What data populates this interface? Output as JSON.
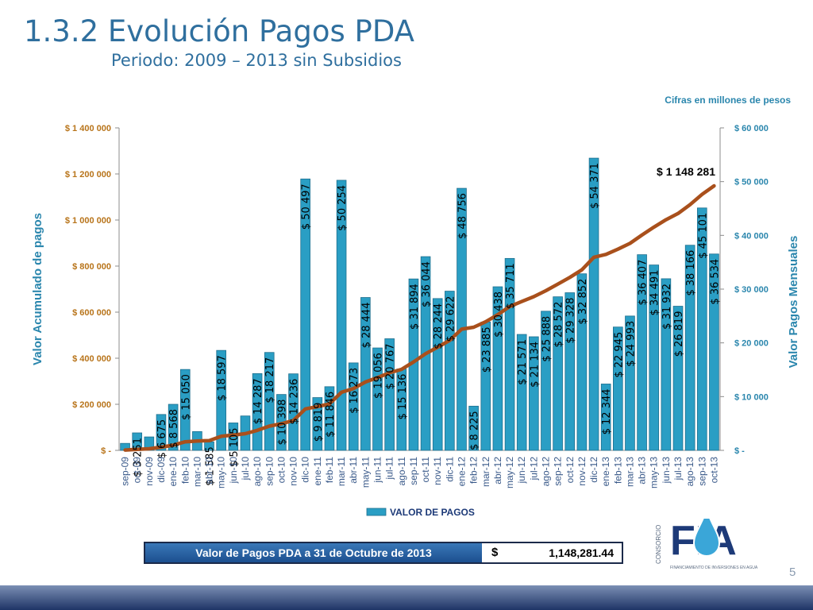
{
  "slide": {
    "title": "1.3.2 Evolución Pagos PDA",
    "subtitle": "Periodo: 2009 – 2013 sin Subsidios",
    "page_number": "5"
  },
  "summary": {
    "label": "Valor de Pagos PDA a 31 de Octubre de 2013",
    "currency": "$",
    "value": "1,148,281.44"
  },
  "logo": {
    "text": "FIA",
    "side_text": "CONSORCIO",
    "tagline": "FINANCIAMIENTO DE INVERSIONES EN AGUA"
  },
  "chart_data": {
    "type": "bar",
    "units_note": "Cifras en millones de pesos",
    "ylabel_left": "Valor Acumulado de pagos",
    "ylabel_right": "Valor Pagos Mensuales",
    "legend": "VALOR DE PAGOS",
    "legend_position": "bottom",
    "left_axis": {
      "range": [
        0,
        1400000
      ],
      "ticks": [
        "$ -",
        "$ 200 000",
        "$ 400 000",
        "$ 600 000",
        "$ 800 000",
        "$ 1 000 000",
        "$ 1 200 000",
        "$ 1 400 000"
      ]
    },
    "right_axis": {
      "range": [
        0,
        60000
      ],
      "ticks": [
        "$ -",
        "$ 10 000",
        "$ 20 000",
        "$ 30 000",
        "$ 40 000",
        "$ 50 000",
        "$ 60 000"
      ]
    },
    "categories": [
      "sep-09",
      "oct-09",
      "nov-09",
      "dic-09",
      "ene-10",
      "feb-10",
      "mar-10",
      "abr-10",
      "may-10",
      "jun-10",
      "jul-10",
      "ago-10",
      "sep-10",
      "oct-10",
      "nov-10",
      "dic-10",
      "ene-11",
      "feb-11",
      "mar-11",
      "abr-11",
      "may-11",
      "jun-11",
      "jul-11",
      "ago-11",
      "sep-11",
      "oct-11",
      "nov-11",
      "dic-11",
      "ene-12",
      "feb-12",
      "mar-12",
      "abr-12",
      "may-12",
      "jun-12",
      "jul-12",
      "ago-12",
      "sep-12",
      "oct-12",
      "nov-12",
      "dic-12",
      "ene-13",
      "feb-13",
      "mar-13",
      "abr-13",
      "may-13",
      "jun-13",
      "jul-13",
      "ago-13",
      "sep-13",
      "oct-13"
    ],
    "series": [
      {
        "name": "VALOR DE PAGOS",
        "type": "bar",
        "axis": "right",
        "color": "#2a9ec4",
        "values": [
          1300,
          3251,
          2500,
          6675,
          8568,
          15050,
          3500,
          1585,
          18597,
          5105,
          6400,
          14287,
          18217,
          10398,
          14236,
          50497,
          9819,
          11846,
          50254,
          16273,
          28444,
          19056,
          20767,
          15136,
          31894,
          36044,
          28244,
          29622,
          48756,
          8225,
          23885,
          30438,
          35711,
          21571,
          21134,
          25888,
          28572,
          29328,
          32852,
          54371,
          12344,
          22945,
          24993,
          36407,
          34491,
          31932,
          26819,
          38166,
          45101,
          36534
        ],
        "labels": [
          "",
          "$ 3 251",
          "",
          "$ 6 675",
          "$ 8 568",
          "$ 15 050",
          "",
          "$ 1 585",
          "$ 18 597",
          "$ 5 105",
          "",
          "$ 14 287",
          "$ 18 217",
          "$ 10 398",
          "$ 14 236",
          "$ 50 497",
          "$ 9 819",
          "$ 11 846",
          "$ 50 254",
          "$ 16 273",
          "$ 28 444",
          "$ 19 056",
          "$ 20 767",
          "$ 15 136",
          "$ 31 894",
          "$ 36 044",
          "$ 28 244",
          "$ 29 622",
          "$ 48 756",
          "$ 8 225",
          "$ 23 885",
          "$ 30 438",
          "$ 35 711",
          "$ 21 571",
          "$ 21 134",
          "$ 25 888",
          "$ 28 572",
          "$ 29 328",
          "$ 32 852",
          "$ 54 371",
          "$ 12 344",
          "$ 22 945",
          "$ 24 993",
          "$ 36 407",
          "$ 34 491",
          "$ 31 932",
          "$ 26 819",
          "$ 38 166",
          "$ 45 101",
          "$ 36 534"
        ]
      },
      {
        "type": "line",
        "axis": "left",
        "color": "#a9501c",
        "values": [
          1300,
          4551,
          7051,
          13726,
          22294,
          37344,
          40844,
          42429,
          61026,
          66131,
          72531,
          86818,
          105035,
          115433,
          129669,
          180166,
          189985,
          201831,
          252085,
          268358,
          296802,
          315858,
          336625,
          351761,
          383655,
          419699,
          447943,
          477565,
          526321,
          534546,
          558431,
          588869,
          624580,
          646151,
          667285,
          693173,
          721745,
          751073,
          783925,
          838296,
          850640,
          873585,
          898578,
          934985,
          969476,
          1001408,
          1028227,
          1066393,
          1111494,
          1148281
        ],
        "end_label": "$ 1 148 281"
      }
    ]
  }
}
